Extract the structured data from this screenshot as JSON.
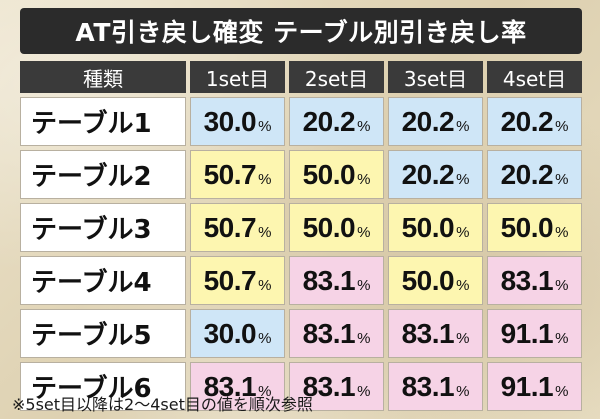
{
  "title": "AT引き戻し確変 テーブル別引き戻し率",
  "colors": {
    "blue": "#cfe6f7",
    "yellow": "#fdf6b0",
    "pink": "#f6d3e6"
  },
  "header": [
    "種類",
    "1set目",
    "2set目",
    "3set目",
    "4set目"
  ],
  "percent_unit": "%",
  "rows": [
    {
      "name": "テーブル1",
      "cells": [
        {
          "value": "30.0",
          "color": "blue"
        },
        {
          "value": "20.2",
          "color": "blue"
        },
        {
          "value": "20.2",
          "color": "blue"
        },
        {
          "value": "20.2",
          "color": "blue"
        }
      ]
    },
    {
      "name": "テーブル2",
      "cells": [
        {
          "value": "50.7",
          "color": "yellow"
        },
        {
          "value": "50.0",
          "color": "yellow"
        },
        {
          "value": "20.2",
          "color": "blue"
        },
        {
          "value": "20.2",
          "color": "blue"
        }
      ]
    },
    {
      "name": "テーブル3",
      "cells": [
        {
          "value": "50.7",
          "color": "yellow"
        },
        {
          "value": "50.0",
          "color": "yellow"
        },
        {
          "value": "50.0",
          "color": "yellow"
        },
        {
          "value": "50.0",
          "color": "yellow"
        }
      ]
    },
    {
      "name": "テーブル4",
      "cells": [
        {
          "value": "50.7",
          "color": "yellow"
        },
        {
          "value": "83.1",
          "color": "pink"
        },
        {
          "value": "50.0",
          "color": "yellow"
        },
        {
          "value": "83.1",
          "color": "pink"
        }
      ]
    },
    {
      "name": "テーブル5",
      "cells": [
        {
          "value": "30.0",
          "color": "blue"
        },
        {
          "value": "83.1",
          "color": "pink"
        },
        {
          "value": "83.1",
          "color": "pink"
        },
        {
          "value": "91.1",
          "color": "pink"
        }
      ]
    },
    {
      "name": "テーブル6",
      "cells": [
        {
          "value": "83.1",
          "color": "pink"
        },
        {
          "value": "83.1",
          "color": "pink"
        },
        {
          "value": "83.1",
          "color": "pink"
        },
        {
          "value": "91.1",
          "color": "pink"
        }
      ]
    }
  ],
  "footnote": "※5set目以降は2〜4set目の値を順次参照"
}
